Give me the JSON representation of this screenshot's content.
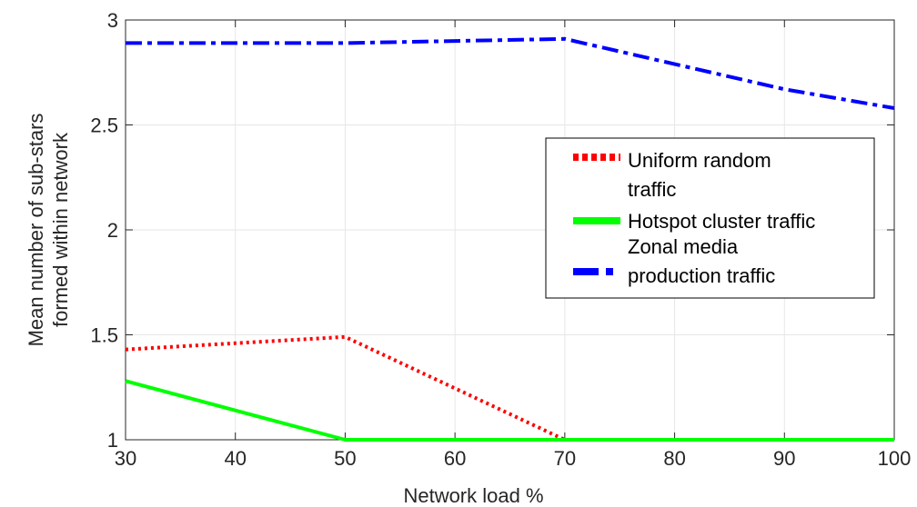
{
  "chart_data": {
    "type": "line",
    "xlabel": "Network load %",
    "ylabel": [
      "Mean number of sub-stars",
      "formed within network"
    ],
    "xlim": [
      30,
      100
    ],
    "ylim": [
      1,
      3
    ],
    "xticks": [
      "30",
      "40",
      "50",
      "60",
      "70",
      "80",
      "90",
      "100"
    ],
    "yticks": [
      "1",
      "1.5",
      "2",
      "2.5",
      "3"
    ],
    "grid": true,
    "legend_position": "center-right",
    "series": [
      {
        "name": [
          "Uniform random",
          "traffic"
        ],
        "color": "#ff0000",
        "style": "dotted",
        "x": [
          30,
          50,
          70,
          100
        ],
        "values": [
          1.43,
          1.49,
          1.0,
          1.0
        ]
      },
      {
        "name": [
          "Hotspot cluster traffic"
        ],
        "color": "#00ff00",
        "style": "solid",
        "x": [
          30,
          50,
          70,
          100
        ],
        "values": [
          1.28,
          1.0,
          1.0,
          1.0
        ]
      },
      {
        "name": [
          "Zonal media",
          "production traffic"
        ],
        "color": "#0000ff",
        "style": "dashdot",
        "x": [
          30,
          50,
          70,
          90,
          100
        ],
        "values": [
          2.89,
          2.89,
          2.91,
          2.67,
          2.58
        ]
      }
    ]
  }
}
